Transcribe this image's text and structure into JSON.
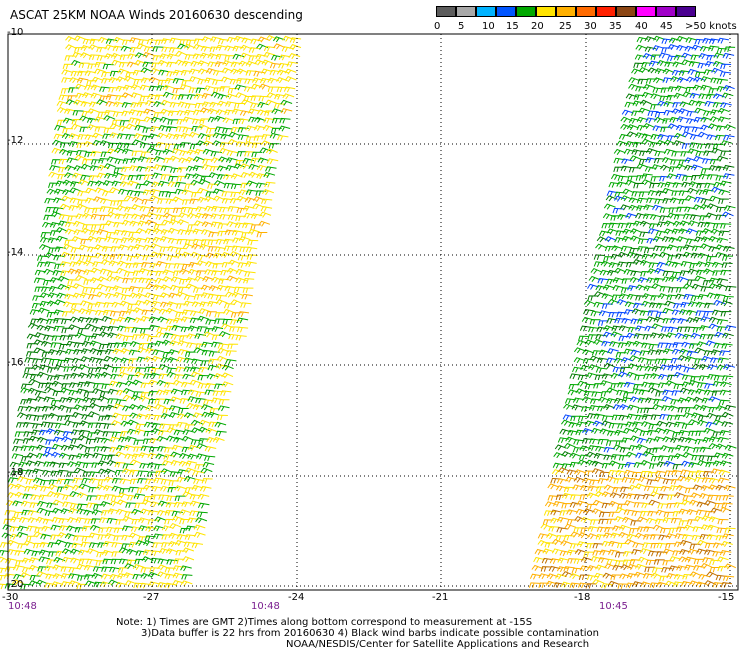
{
  "title": "ASCAT 25KM NOAA Winds 20160630 descending",
  "legend": {
    "colors": [
      "#5c5c5c",
      "#a8a8a8",
      "#00b3ff",
      "#0055ff",
      "#00a800",
      "#ffe400",
      "#ffb000",
      "#ff6a00",
      "#ff2000",
      "#8b4513",
      "#ff00ff",
      "#a000c8",
      "#4a0090"
    ],
    "labels": [
      "0",
      "5",
      "10",
      "15",
      "20",
      "25",
      "30",
      "35",
      "40",
      "45",
      ">50 knots"
    ]
  },
  "axes": {
    "lat_labels": [
      "-10",
      "-12",
      "-14",
      "-16",
      "-18",
      "-20"
    ],
    "lon_labels": [
      "-30",
      "-27",
      "-24",
      "-21",
      "-18",
      "-15"
    ]
  },
  "times": [
    "10:48",
    "10:48",
    "10:45"
  ],
  "notes": [
    "Note: 1) Times are GMT 2)Times along bottom correspond to measurement at -15S",
    "3)Data buffer is 22 hrs from 20160630 4) Black wind barbs indicate possible contamination",
    "NOAA/NESDIS/Center for Satellite Applications and Research"
  ],
  "swaths": [
    {
      "name": "west-swath"
    },
    {
      "name": "east-swath"
    }
  ]
}
